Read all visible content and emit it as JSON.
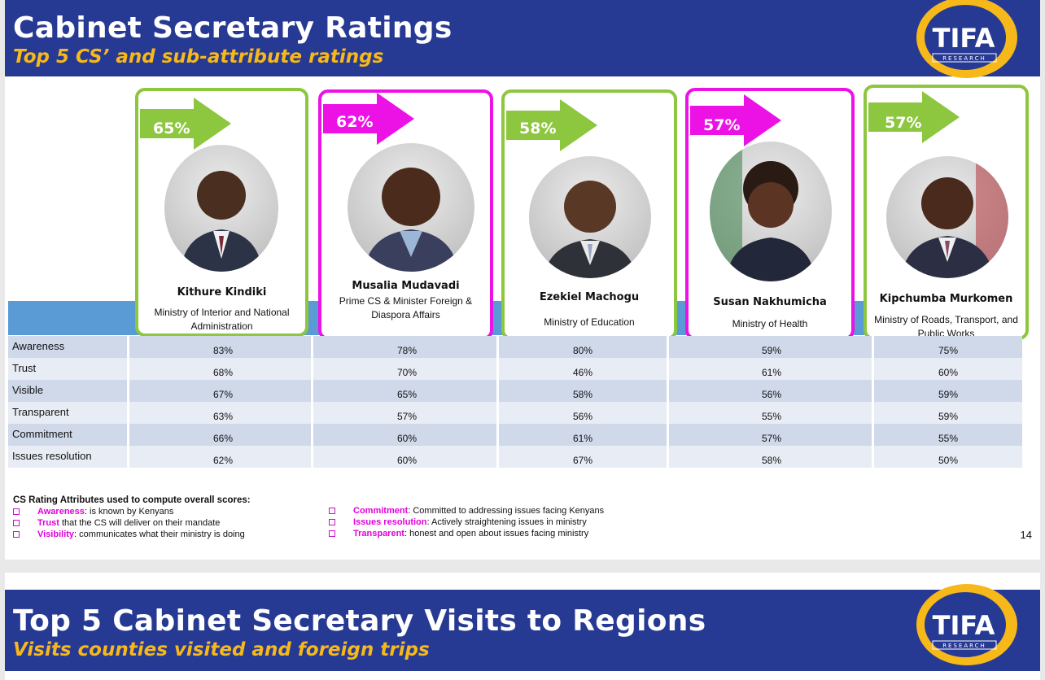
{
  "slide1": {
    "title": "Cabinet Secretary Ratings",
    "subtitle": "Top 5 CS’ and sub-attribute ratings",
    "logo_text": "TIFA",
    "logo_sub": "RESEARCH",
    "page_number": "14",
    "cabinet_secretaries": [
      {
        "score": "65%",
        "name": "Kithure Kindiki",
        "role": "Ministry of Interior and National Administration",
        "frame_color": "#8dc63f"
      },
      {
        "score": "62%",
        "name": "Musalia Mudavadi",
        "role": "Prime CS & Minister Foreign & Diaspora Affairs",
        "frame_color": "#ec12e6"
      },
      {
        "score": "58%",
        "name": "Ezekiel Machogu",
        "role": "Ministry of Education",
        "frame_color": "#8dc63f"
      },
      {
        "score": "57%",
        "name": "Susan Nakhumicha",
        "role": "Ministry of Health",
        "frame_color": "#ec12e6"
      },
      {
        "score": "57%",
        "name": "Kipchumba Murkomen",
        "role": "Ministry of Roads, Transport, and Public Works",
        "frame_color": "#8dc63f"
      }
    ],
    "ratings": [
      {
        "attribute": "Awareness",
        "values": [
          "83%",
          "78%",
          "80%",
          "59%",
          "75%"
        ]
      },
      {
        "attribute": "Trust",
        "values": [
          "68%",
          "70%",
          "46%",
          "61%",
          "60%"
        ]
      },
      {
        "attribute": "Visible",
        "values": [
          "67%",
          "65%",
          "58%",
          "56%",
          "59%"
        ]
      },
      {
        "attribute": "Transparent",
        "values": [
          "63%",
          "57%",
          "56%",
          "55%",
          "59%"
        ]
      },
      {
        "attribute": "Commitment",
        "values": [
          "66%",
          "60%",
          "61%",
          "57%",
          "55%"
        ]
      },
      {
        "attribute": "Issues resolution",
        "values": [
          "62%",
          "60%",
          "67%",
          "58%",
          "50%"
        ]
      }
    ],
    "legend": {
      "title": "CS Rating Attributes used to compute overall scores:",
      "left": [
        {
          "key": "Awareness",
          "text": ": is known by Kenyans"
        },
        {
          "key": "Trust",
          "text": " that the CS will deliver on their mandate"
        },
        {
          "key": "Visibility",
          "text": ": communicates what their ministry is doing"
        }
      ],
      "right": [
        {
          "key": "Commitment",
          "text": ": Committed to addressing issues facing Kenyans"
        },
        {
          "key": "Issues resolution",
          "text": ": Actively straightening issues in ministry"
        },
        {
          "key": "Transparent",
          "text": ":  honest and open about issues facing ministry"
        }
      ]
    }
  },
  "slide2": {
    "title": "Top 5 Cabinet Secretary Visits to Regions",
    "subtitle": "Visits counties visited and foreign trips",
    "logo_text": "TIFA",
    "logo_sub": "RESEARCH"
  },
  "colors": {
    "header_blue": "#273a93",
    "subtitle_gold": "#f7b81a",
    "green_frame": "#8dc63f",
    "pink_frame": "#ec12e6",
    "table_band": "#5b9bd5"
  }
}
